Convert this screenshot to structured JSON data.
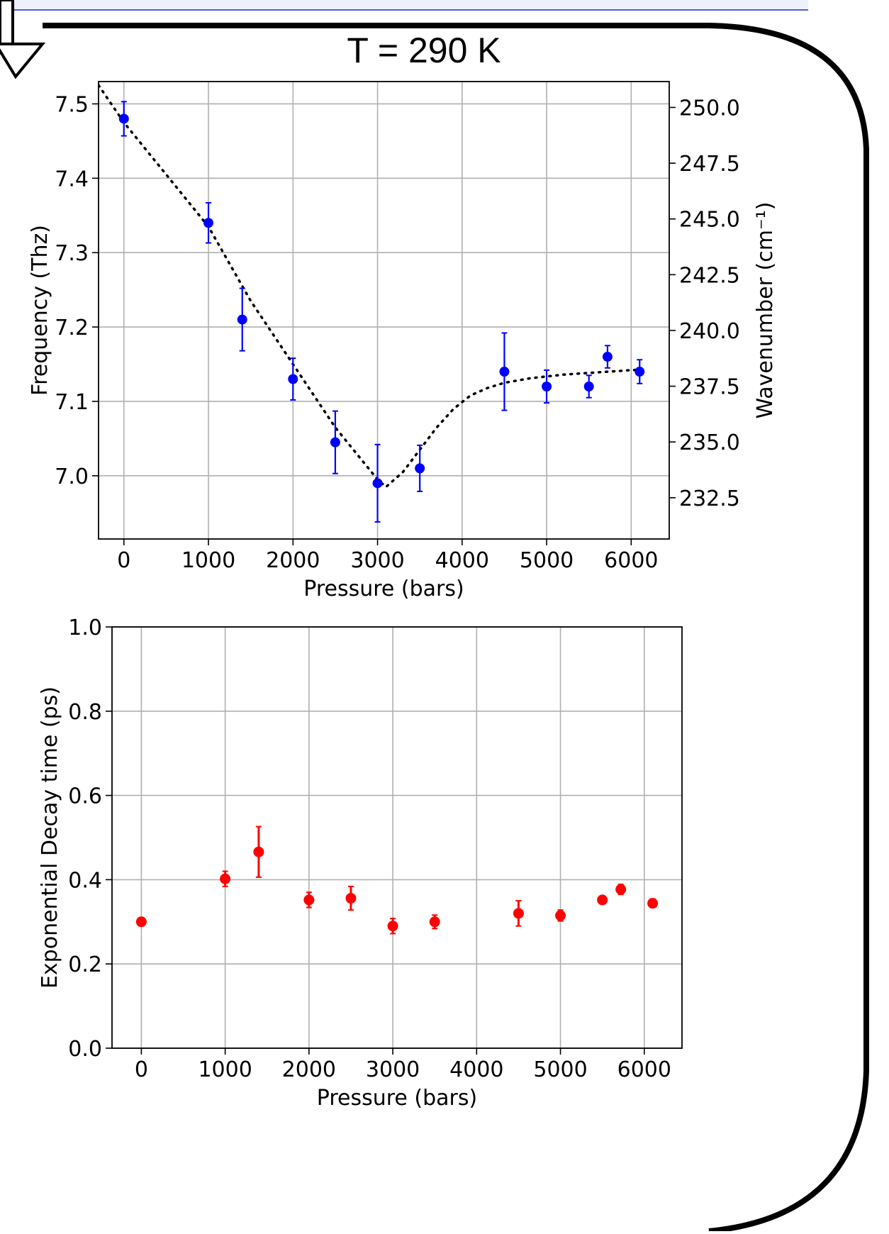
{
  "header": {
    "title": "T = 290 K"
  },
  "colors": {
    "top_series": "#0000ff",
    "bottom_series": "#ff0000",
    "fit_line": "#000000",
    "frame_border": "#000000",
    "top_strip": "#eef0fb"
  },
  "chart_data": [
    {
      "type": "scatter",
      "title": "",
      "xlabel": "Pressure (bars)",
      "ylabel": "Frequency (Thz)",
      "ylabel_right": "Wavenumber (cm⁻¹)",
      "xlim": [
        -300,
        6450
      ],
      "ylim": [
        6.915,
        7.53
      ],
      "ylim_right": [
        230.65,
        251.16
      ],
      "xticks": [
        0,
        1000,
        2000,
        3000,
        4000,
        5000,
        6000
      ],
      "xtick_labels": [
        "0",
        "1000",
        "2000",
        "3000",
        "4000",
        "5000",
        "6000"
      ],
      "yticks": [
        7.0,
        7.1,
        7.2,
        7.3,
        7.4,
        7.5
      ],
      "ytick_labels": [
        "7.0",
        "7.1",
        "7.2",
        "7.3",
        "7.4",
        "7.5"
      ],
      "yticks_right": [
        232.5,
        235.0,
        237.5,
        240.0,
        242.5,
        245.0,
        247.5,
        250.0
      ],
      "ytick_labels_right": [
        "232.5",
        "235.0",
        "237.5",
        "240.0",
        "242.5",
        "245.0",
        "247.5",
        "250.0"
      ],
      "grid": true,
      "series": [
        {
          "x": [
            0,
            1000,
            1400,
            2000,
            2500,
            3000,
            3500,
            4500,
            5000,
            5500,
            5720,
            6100
          ],
          "y": [
            7.48,
            7.34,
            7.21,
            7.13,
            7.045,
            6.99,
            7.01,
            7.14,
            7.12,
            7.12,
            7.16,
            7.14
          ],
          "yerr": [
            0.023,
            0.027,
            0.042,
            0.028,
            0.042,
            0.052,
            0.031,
            0.052,
            0.022,
            0.015,
            0.015,
            0.016
          ]
        }
      ],
      "fit_curve": {
        "x": [
          -300,
          0,
          500,
          1000,
          1500,
          2000,
          2500,
          3000,
          3100,
          3300,
          3500,
          3700,
          3900,
          4100,
          4300,
          4500,
          4800,
          5200,
          5600,
          6000,
          6200
        ],
        "y": [
          7.525,
          7.475,
          7.405,
          7.335,
          7.235,
          7.15,
          7.065,
          6.995,
          6.985,
          7.005,
          7.035,
          7.065,
          7.09,
          7.108,
          7.118,
          7.125,
          7.131,
          7.136,
          7.139,
          7.142,
          7.143
        ]
      }
    },
    {
      "type": "scatter",
      "title": "",
      "xlabel": "Pressure (bars)",
      "ylabel": "Exponential Decay time (ps)",
      "xlim": [
        -350,
        6450
      ],
      "ylim": [
        0.0,
        1.0
      ],
      "xticks": [
        0,
        1000,
        2000,
        3000,
        4000,
        5000,
        6000
      ],
      "xtick_labels": [
        "0",
        "1000",
        "2000",
        "3000",
        "4000",
        "5000",
        "6000"
      ],
      "yticks": [
        0.0,
        0.2,
        0.4,
        0.6,
        0.8,
        1.0
      ],
      "ytick_labels": [
        "0.0",
        "0.2",
        "0.4",
        "0.6",
        "0.8",
        "1.0"
      ],
      "grid": true,
      "series": [
        {
          "x": [
            0,
            1000,
            1400,
            2000,
            2500,
            3000,
            3500,
            4500,
            5000,
            5500,
            5720,
            6100
          ],
          "y": [
            0.3,
            0.402,
            0.466,
            0.352,
            0.356,
            0.29,
            0.3,
            0.32,
            0.315,
            0.352,
            0.377,
            0.344
          ],
          "yerr": [
            0.0,
            0.018,
            0.06,
            0.018,
            0.028,
            0.018,
            0.016,
            0.03,
            0.013,
            0.006,
            0.012,
            0.01
          ]
        }
      ]
    }
  ]
}
